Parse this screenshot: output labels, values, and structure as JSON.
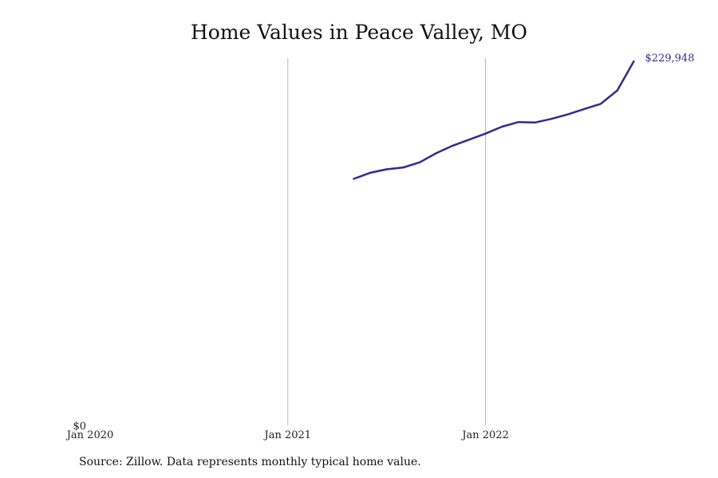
{
  "chart_data": {
    "type": "line",
    "title": "Home Values in Peace Valley, MO",
    "xlabel": "",
    "ylabel": "",
    "x_ticks": [
      "Jan 2020",
      "Jan 2021",
      "Jan 2022"
    ],
    "y_ticks": [
      "$0"
    ],
    "xlim": [
      "2020-01",
      "2022-12"
    ],
    "ylim": [
      0,
      229948
    ],
    "grid": "vertical lines at Jan 2021 and Jan 2022",
    "series": [
      {
        "color": "#2e2b8f",
        "x": [
          "2021-05",
          "2021-06",
          "2021-07",
          "2021-08",
          "2021-09",
          "2021-10",
          "2021-11",
          "2021-12",
          "2022-01",
          "2022-02",
          "2022-03",
          "2022-04",
          "2022-05",
          "2022-06",
          "2022-07",
          "2022-08",
          "2022-09",
          "2022-10"
        ],
        "values": [
          155900,
          159700,
          161900,
          163000,
          166300,
          172000,
          176800,
          180600,
          184400,
          188800,
          191700,
          191400,
          193700,
          196500,
          199900,
          203200,
          211600,
          229948
        ],
        "end_label": "$229,948"
      }
    ]
  },
  "source_note": "Source: Zillow. Data represents monthly typical home value."
}
